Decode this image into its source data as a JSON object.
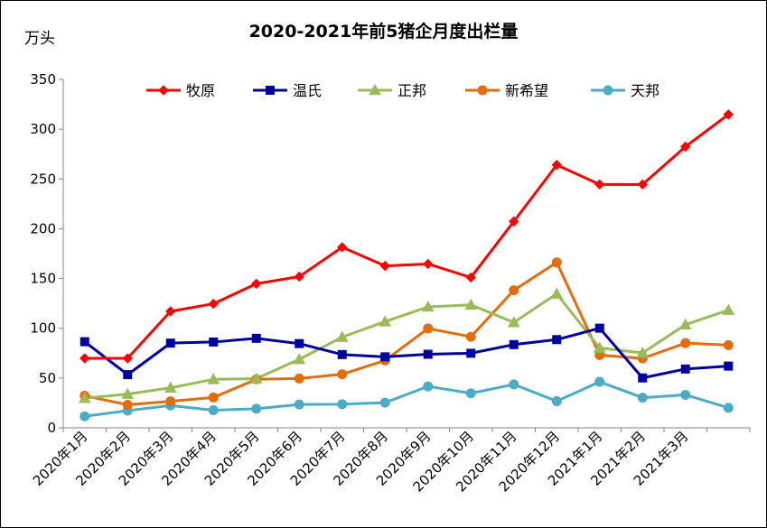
{
  "chart_data": {
    "type": "line",
    "title": "2020-2021年前5猪企月度出栏量",
    "ylabel": "万头",
    "xlabel": "",
    "ylim": [
      0,
      350
    ],
    "yticks": [
      0,
      50,
      100,
      150,
      200,
      250,
      300,
      350
    ],
    "grid": false,
    "legend_position": "top",
    "categories": [
      "2020年1月",
      "2020年2月",
      "2020年3月",
      "2020年4月",
      "2020年5月",
      "2020年6月",
      "2020年7月",
      "2020年8月",
      "2020年9月",
      "2020年10月",
      "2020年11月",
      "2020年12月",
      "2021年1月",
      "2021年2月",
      "2021年3月",
      ""
    ],
    "series": [
      {
        "name": "牧原",
        "color": "#FF0000",
        "marker": "diamond",
        "values": [
          69.8,
          69.8,
          117,
          124.6,
          144.7,
          151.9,
          181.4,
          162.7,
          164.6,
          151,
          207.3,
          264.1,
          244.5,
          244.5,
          282.5,
          314.7
        ]
      },
      {
        "name": "温氏",
        "color": "#0000A0",
        "marker": "square",
        "values": [
          86.5,
          53.4,
          85.1,
          86.2,
          89.9,
          84.6,
          73.6,
          71.3,
          73.9,
          74.9,
          83.6,
          88.6,
          100.1,
          50.1,
          59.1,
          62
        ]
      },
      {
        "name": "正邦",
        "color": "#9BBB59",
        "marker": "triangle",
        "values": [
          29.7,
          33.9,
          40.2,
          48.7,
          49.4,
          68.8,
          91.1,
          106.7,
          121.5,
          123.5,
          105.9,
          134.6,
          80.2,
          75.3,
          103.6,
          118.3
        ]
      },
      {
        "name": "新希望",
        "color": "#E46C0A",
        "marker": "circle",
        "values": [
          32.2,
          23.1,
          26.6,
          30.5,
          48.7,
          49.5,
          53.8,
          67.7,
          99.8,
          91.5,
          138.2,
          166.2,
          73.1,
          69.7,
          85.1,
          83.1
        ]
      },
      {
        "name": "天邦",
        "color": "#4BACC6",
        "marker": "circle",
        "values": [
          11.6,
          17.2,
          22.4,
          17.7,
          19.2,
          23.5,
          23.7,
          25.3,
          41.6,
          34.7,
          43.6,
          26.7,
          46.2,
          30.3,
          33.1,
          20.1
        ]
      }
    ]
  }
}
